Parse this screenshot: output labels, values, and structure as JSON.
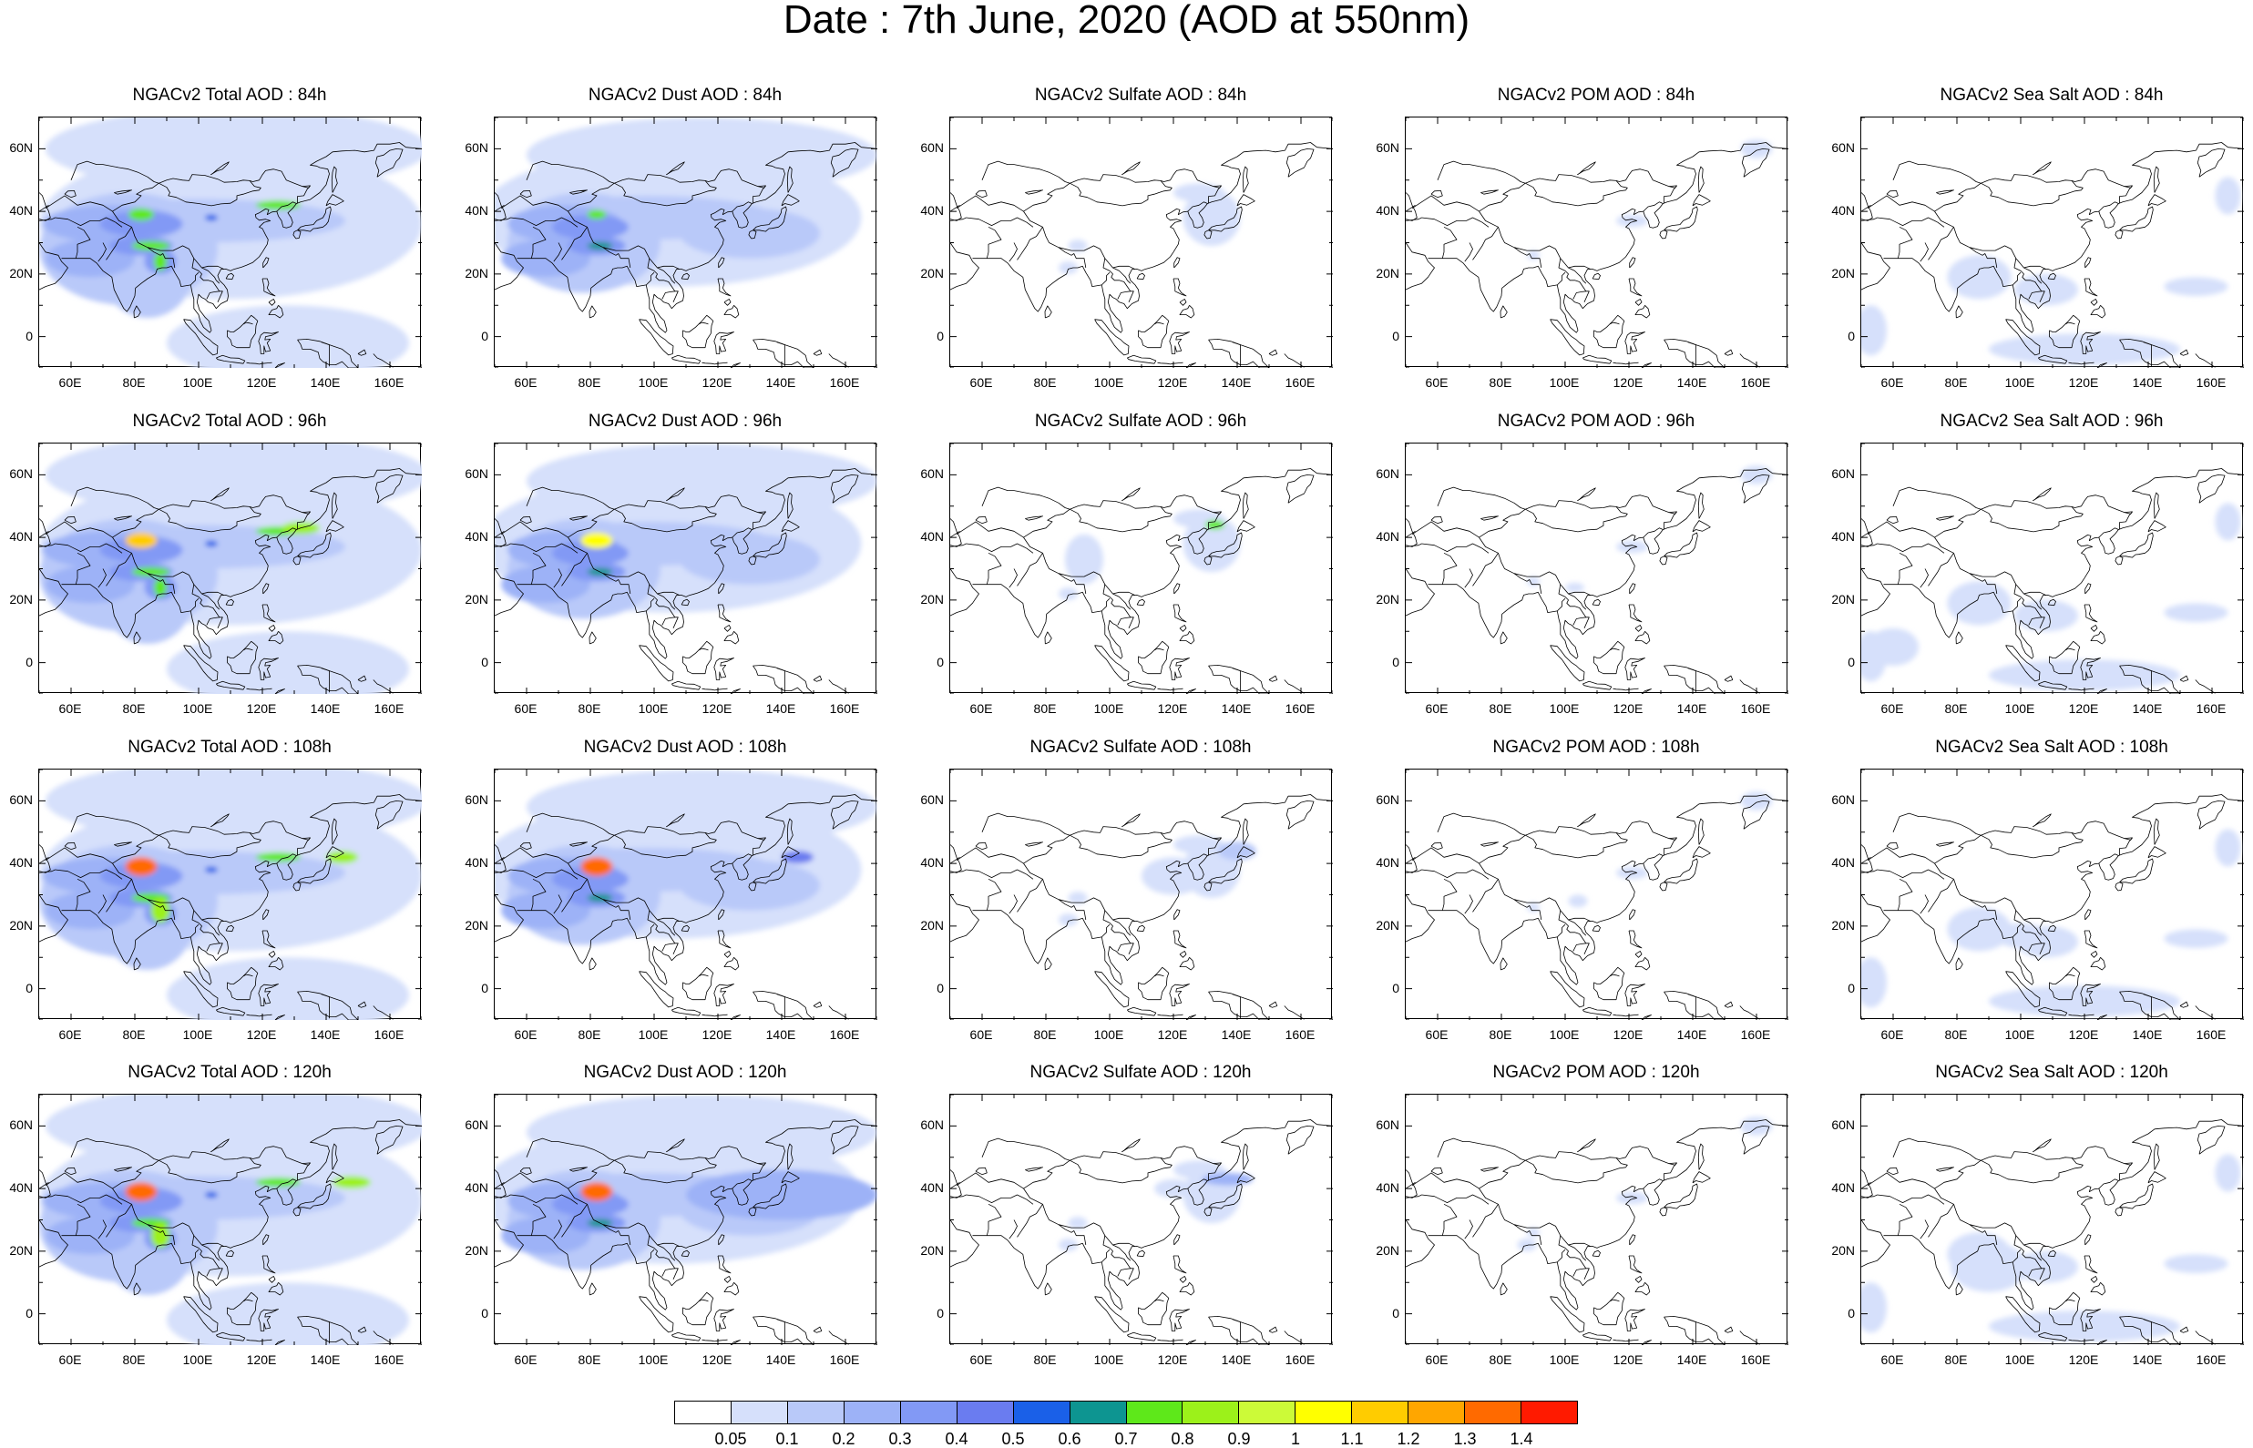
{
  "title": "Date : 7th June, 2020 (AOD at 550nm)",
  "panels": [
    [
      "NGACv2 Total AOD : 84h",
      "NGACv2 Dust AOD : 84h",
      "NGACv2 Sulfate AOD : 84h",
      "NGACv2 POM AOD : 84h",
      "NGACv2 Sea Salt AOD : 84h"
    ],
    [
      "NGACv2 Total AOD : 96h",
      "NGACv2 Dust AOD : 96h",
      "NGACv2 Sulfate AOD : 96h",
      "NGACv2 POM AOD : 96h",
      "NGACv2 Sea Salt AOD : 96h"
    ],
    [
      "NGACv2 Total AOD : 108h",
      "NGACv2 Dust AOD : 108h",
      "NGACv2 Sulfate AOD : 108h",
      "NGACv2 POM AOD : 108h",
      "NGACv2 Sea Salt AOD : 108h"
    ],
    [
      "NGACv2 Total AOD : 120h",
      "NGACv2 Dust AOD : 120h",
      "NGACv2 Sulfate AOD : 120h",
      "NGACv2 POM AOD : 120h",
      "NGACv2 Sea Salt  AOD : 120h"
    ]
  ],
  "lat_ticks": [
    "60N",
    "40N",
    "20N",
    "0"
  ],
  "lon_ticks": [
    "60E",
    "80E",
    "100E",
    "120E",
    "140E",
    "160E"
  ],
  "colorbar": {
    "colors": [
      "#ffffff",
      "#d6e0fb",
      "#b9c9f9",
      "#9db2f7",
      "#8299f5",
      "#6a7cf0",
      "#1a60e8",
      "#0d9591",
      "#5ee81a",
      "#9cf11a",
      "#ccfa38",
      "#ffff00",
      "#ffcc00",
      "#ffa600",
      "#ff6a00",
      "#ff1a00"
    ],
    "labels": [
      "0.05",
      "0.1",
      "0.2",
      "0.3",
      "0.4",
      "0.5",
      "0.6",
      "0.7",
      "0.8",
      "0.9",
      "1",
      "1.1",
      "1.2",
      "1.3",
      "1.4"
    ]
  },
  "map_extent": {
    "lon": [
      50,
      170
    ],
    "lat": [
      -10,
      70
    ]
  }
}
